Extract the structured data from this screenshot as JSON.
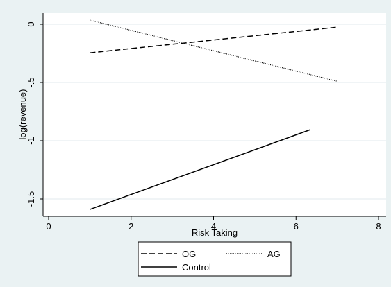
{
  "chart_data": {
    "type": "line",
    "title": "",
    "xlabel": "Risk Taking",
    "ylabel": "log(revenue)",
    "xlim": [
      0,
      8
    ],
    "ylim": [
      -1.5,
      0
    ],
    "x_ticks": [
      0,
      2,
      4,
      6,
      8
    ],
    "y_ticks": [
      0,
      -0.5,
      -1,
      -1.5
    ],
    "x_tick_labels": [
      "0",
      "2",
      "4",
      "6",
      "8"
    ],
    "y_tick_labels": [
      "0",
      "-.5",
      "-1",
      "-1.5"
    ],
    "grid": "horizontal",
    "legend_position": "bottom",
    "series": [
      {
        "name": "OG",
        "style": "dashed",
        "color": "#000000",
        "x": [
          1,
          7
        ],
        "y": [
          -0.245,
          -0.025
        ]
      },
      {
        "name": "AG",
        "style": "dotted",
        "color": "#000000",
        "x": [
          1,
          7
        ],
        "y": [
          0.035,
          -0.49
        ]
      },
      {
        "name": "Control",
        "style": "solid",
        "color": "#000000",
        "x": [
          1,
          6.35
        ],
        "y": [
          -1.59,
          -0.905
        ]
      }
    ]
  }
}
